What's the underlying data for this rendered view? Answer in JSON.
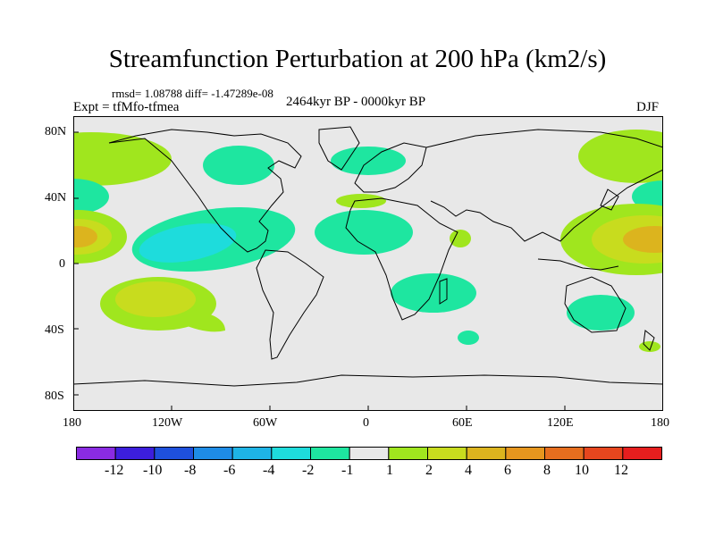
{
  "title": "Streamfunction Perturbation at 200 hPa (km2/s)",
  "stats": "rmsd= 1.08788 diff= -1.47289e-08",
  "experiment": "Expt = tfMfo-tfmea",
  "period": "2464kyr BP - 0000kyr BP",
  "season": "DJF",
  "axes": {
    "lat_labels": [
      "80N",
      "40N",
      "0",
      "40S",
      "80S"
    ],
    "lon_labels": [
      "180",
      "120W",
      "60W",
      "0",
      "60E",
      "120E",
      "180"
    ]
  },
  "colorbar": {
    "labels": [
      "-12",
      "-10",
      "-8",
      "-6",
      "-4",
      "-2",
      "-1",
      "1",
      "2",
      "4",
      "6",
      "8",
      "10",
      "12"
    ],
    "colors": [
      "#8a2be2",
      "#3c1edc",
      "#1e50dc",
      "#1e8ce6",
      "#1eb4e6",
      "#1edcdc",
      "#1ee6a0",
      "#e8e8e8",
      "#a0e61e",
      "#c8dc1e",
      "#dcb41e",
      "#e6961e",
      "#e66e1e",
      "#e6461e",
      "#e61e1e"
    ]
  },
  "colors": {
    "background": "#e8e8e8",
    "coast": "#000000"
  }
}
